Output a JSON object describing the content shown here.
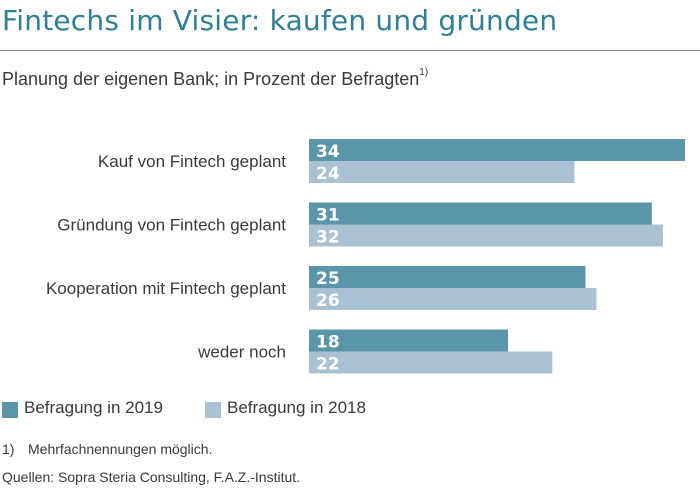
{
  "header": {
    "title": "Fintechs im Visier: kaufen und gründen",
    "subtitle": "Planung der eigenen Bank; in Prozent der Befragten",
    "subtitle_footnote": "1)"
  },
  "chart_data": {
    "type": "bar",
    "orientation": "horizontal",
    "categories": [
      "Kauf von Fintech geplant",
      "Gründung von Fintech geplant",
      "Kooperation mit Fintech geplant",
      "weder noch"
    ],
    "series": [
      {
        "name": "Befragung in 2019",
        "values": [
          34,
          31,
          25,
          18
        ],
        "color": "#5b95aa"
      },
      {
        "name": "Befragung in 2018",
        "values": [
          24,
          32,
          26,
          22
        ],
        "color": "#a9c1d2"
      }
    ],
    "title": "Fintechs im Visier: kaufen und gründen",
    "xlabel": "",
    "ylabel": "",
    "xlim": [
      0,
      34
    ],
    "grid": false,
    "legend": "bottom-left",
    "data_labels": true
  },
  "legend": {
    "items": [
      {
        "label": "Befragung in 2019",
        "color": "#5b95aa"
      },
      {
        "label": "Befragung in 2018",
        "color": "#a9c1d2"
      }
    ]
  },
  "footer": {
    "note_marker": "1)",
    "note_text": "Mehrfachnennungen möglich.",
    "source": "Quellen: Sopra Steria Consulting, F.A.Z.-Institut."
  },
  "colors": {
    "title": "#2f7f95",
    "text": "#3a3a3a",
    "label_on_bar": "#ffffff"
  }
}
